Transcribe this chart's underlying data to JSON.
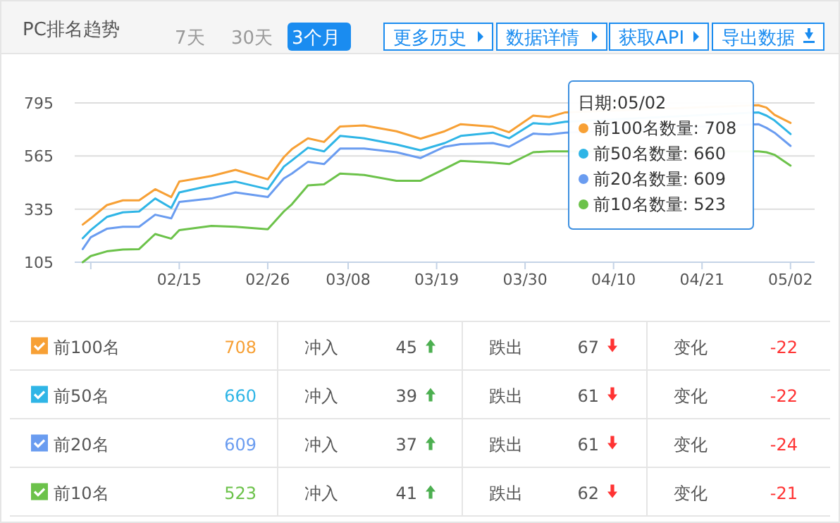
{
  "chart_data": [
    {
      "type": "line",
      "title": "PC排名趋势",
      "annotations": [
        "7天",
        "30天",
        "3个月",
        "更多历史",
        "数据详情",
        "获取API",
        "导出数据",
        "日期:05/02",
        "前100名数量: 708",
        "前50名数量: 660",
        "前20名数量: 609",
        "前10名数量: 523"
      ],
      "x": [
        "--02-03",
        "--02-04",
        "--02-06",
        "--02-08",
        "--02-10",
        "--02-12",
        "--02-14",
        "--02-15",
        "--02-19",
        "--02-22",
        "--02-26",
        "--02-28",
        "--03-01",
        "--03-03",
        "--03-05",
        "--03-07",
        "--03-10",
        "--03-14",
        "--03-17",
        "--03-20",
        "--03-22",
        "--03-26",
        "--03-28",
        "--03-31",
        "--04-02",
        "--04-04",
        "--04-28",
        "--04-29",
        "--04-30",
        "--05-02"
      ],
      "series": [
        {
          "name": "前100名",
          "color": "#f7a035",
          "values": [
            268,
            295,
            352,
            373,
            373,
            421,
            387,
            454,
            478,
            505,
            464,
            560,
            595,
            642,
            626,
            693,
            697,
            672,
            640,
            672,
            703,
            692,
            668,
            740,
            734,
            754,
            785,
            775,
            744,
            708
          ]
        },
        {
          "name": "前50名",
          "color": "#2fb5e6",
          "values": [
            209,
            244,
            301,
            321,
            325,
            381,
            340,
            407,
            438,
            454,
            421,
            519,
            546,
            601,
            585,
            652,
            642,
            615,
            590,
            621,
            652,
            666,
            642,
            707,
            703,
            713,
            754,
            740,
            719,
            660
          ]
        },
        {
          "name": "前20名",
          "color": "#6a9cf0",
          "values": [
            162,
            213,
            250,
            258,
            258,
            311,
            295,
            366,
            381,
            407,
            387,
            468,
            489,
            540,
            530,
            597,
            597,
            581,
            556,
            605,
            617,
            621,
            605,
            662,
            658,
            666,
            703,
            687,
            666,
            609
          ]
        },
        {
          "name": "前10名",
          "color": "#6cc24a",
          "values": [
            105,
            132,
            152,
            160,
            162,
            227,
            207,
            244,
            262,
            258,
            248,
            325,
            356,
            438,
            442,
            489,
            483,
            458,
            458,
            509,
            544,
            536,
            530,
            581,
            585,
            585,
            585,
            581,
            570,
            523
          ]
        }
      ],
      "xlim": [
        "--02-02",
        "--05-05"
      ],
      "xticks": [
        {
          "value": "--02-04",
          "label": null
        },
        {
          "value": "--02-15",
          "label": "02/15"
        },
        {
          "value": "--02-26",
          "label": "02/26"
        },
        {
          "value": "--03-08",
          "label": "03/08"
        },
        {
          "value": "--03-19",
          "label": "03/19"
        },
        {
          "value": "--03-30",
          "label": "03/30"
        },
        {
          "value": "--04-10",
          "label": "04/10"
        },
        {
          "value": "--04-21",
          "label": "04/21"
        },
        {
          "value": "--05-02",
          "label": "05/02"
        }
      ],
      "ylim": [
        105,
        795
      ],
      "yticks": [
        105,
        335,
        565,
        795
      ],
      "grid": "y",
      "legend": "bottom",
      "marker": "none",
      "line_style": "solid"
    },
    {
      "type": "other",
      "annotations": [
        "708",
        "冲入",
        "45",
        "跌出",
        "67",
        "变化",
        "-22",
        "660",
        "冲入",
        "39",
        "跌出",
        "61",
        "变化",
        "-22",
        "609",
        "冲入",
        "37",
        "跌出",
        "61",
        "变化",
        "-24",
        "523",
        "冲入",
        "41",
        "跌出",
        "62",
        "变化",
        "-21"
      ]
    }
  ]
}
